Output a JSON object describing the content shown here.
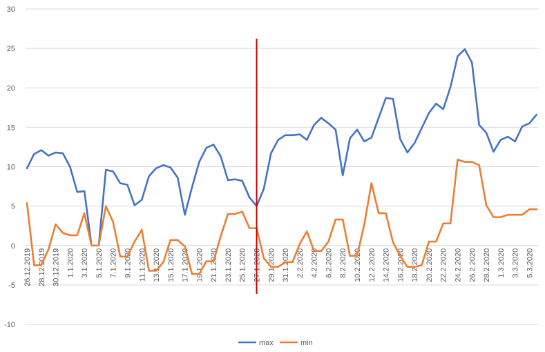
{
  "chart_data": {
    "type": "line",
    "ylim": [
      -10,
      30
    ],
    "y_ticks": [
      -10,
      -5,
      0,
      5,
      10,
      15,
      20,
      25,
      30
    ],
    "grid": "horizontal",
    "legend_placement": "bottom",
    "x_tick_labels": [
      "26.12.2019",
      "28.12.2019",
      "30.12.2019",
      "1.1.2020",
      "3.1.2020",
      "5.1.2020",
      "7.1.2020",
      "9.1.2020",
      "11.1.2020",
      "13.1.2020",
      "15.1.2020",
      "17.1.2020",
      "19.1.2020",
      "21.1.2020",
      "23.1.2020",
      "25.1.2020",
      "27.1.2020",
      "29.1.2020",
      "31.1.2020",
      "2.2.2020",
      "4.2.2020",
      "6.2.2020",
      "8.2.2020",
      "10.2.2020",
      "12.2.2020",
      "14.2.2020",
      "16.2.2020",
      "18.2.2020",
      "20.2.2020",
      "22.2.2020",
      "24.2.2020",
      "26.2.2020",
      "28.2.2020",
      "1.3.2020",
      "3.3.2020",
      "5.3.2020"
    ],
    "x_tick_step": 2,
    "series": [
      {
        "name": "max",
        "color": "#4472C4",
        "values": [
          9.8,
          11.6,
          12.1,
          11.4,
          11.8,
          11.7,
          10.0,
          6.8,
          6.9,
          0.0,
          0.0,
          9.6,
          9.4,
          7.9,
          7.7,
          5.1,
          5.8,
          8.8,
          9.8,
          10.2,
          9.9,
          8.6,
          3.9,
          7.4,
          10.6,
          12.4,
          12.8,
          11.3,
          8.3,
          8.4,
          8.2,
          6.1,
          5.0,
          7.2,
          11.7,
          13.4,
          14.0,
          14.0,
          14.1,
          13.4,
          15.3,
          16.2,
          15.5,
          14.7,
          8.9,
          13.6,
          14.7,
          13.2,
          13.7,
          16.2,
          18.7,
          18.6,
          13.5,
          11.8,
          13.0,
          14.9,
          16.8,
          18.0,
          17.3,
          20.1,
          24.0,
          24.9,
          23.2,
          15.3,
          14.3,
          11.9,
          13.4,
          13.8,
          13.2,
          15.1,
          15.5,
          16.6
        ]
      },
      {
        "name": "min",
        "color": "#ED7D31",
        "values": [
          5.4,
          -2.5,
          -2.5,
          -0.5,
          2.7,
          1.6,
          1.3,
          1.3,
          4.1,
          0.0,
          0.0,
          5.0,
          3.0,
          -1.4,
          -1.4,
          0.5,
          2.0,
          -3.2,
          -3.2,
          -2.1,
          0.7,
          0.7,
          -0.1,
          -3.6,
          -3.6,
          -2.0,
          -2.0,
          1.2,
          4.0,
          4.0,
          4.3,
          2.2,
          2.2,
          -1.6,
          -2.7,
          -2.7,
          -2.1,
          -2.1,
          0.2,
          1.8,
          -0.7,
          -0.7,
          0.5,
          3.3,
          3.3,
          -1.3,
          -1.3,
          2.7,
          7.9,
          4.1,
          4.1,
          0.4,
          -1.3,
          -2.7,
          -2.7,
          -2.5,
          0.5,
          0.5,
          2.8,
          2.8,
          10.9,
          10.6,
          10.6,
          10.2,
          5.1,
          3.6,
          3.6,
          3.9,
          3.9,
          3.9,
          4.6,
          4.6
        ]
      }
    ],
    "marker_line": {
      "index": 32,
      "color": "#C00000"
    }
  }
}
